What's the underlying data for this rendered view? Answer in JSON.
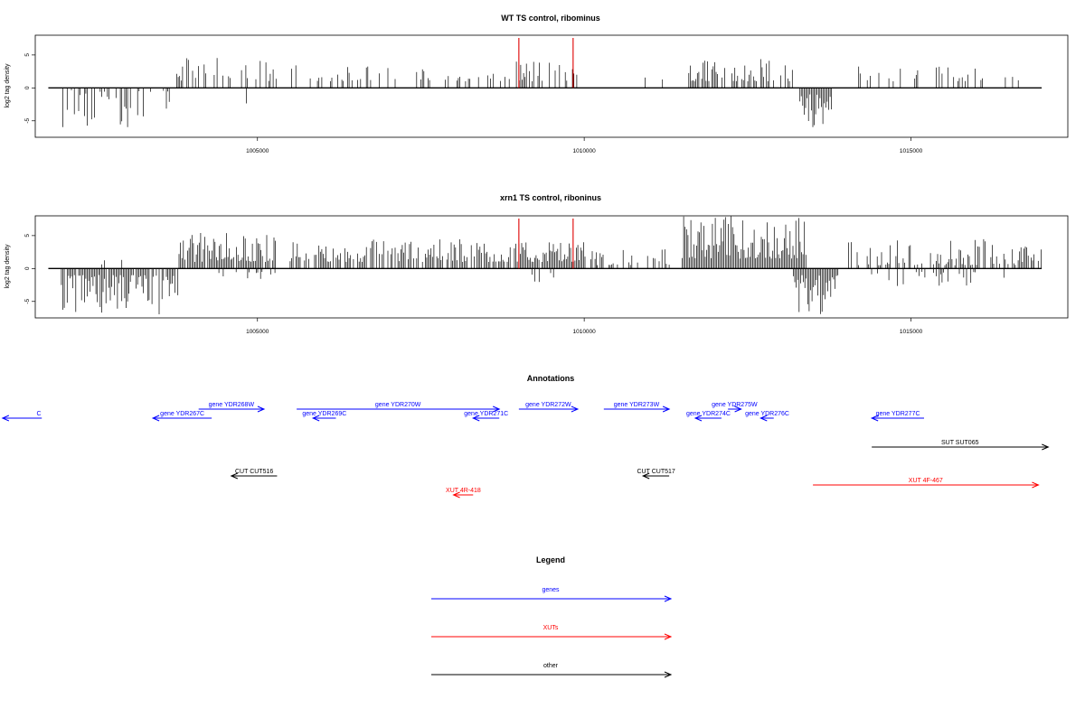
{
  "chart_data": [
    {
      "type": "bar",
      "title": "WT TS control, ribominus",
      "ylabel": "log2 tag density",
      "xlabel": "",
      "xlim": [
        1001600,
        1017400
      ],
      "ylim": [
        -7.5,
        8
      ],
      "yticks": [
        -5,
        0,
        5
      ],
      "xticks": [
        1005000,
        1010000,
        1015000
      ],
      "xtick_labels": [
        "1005000",
        "1010000",
        "1015000"
      ],
      "grid": false,
      "marker_positions": [
        1009000,
        1009830
      ],
      "marker_color": "#dd0000",
      "profile": [
        {
          "from": 1002000,
          "to": 1003700,
          "min": -6,
          "max": 0,
          "sign": -1,
          "density": 0.45
        },
        {
          "from": 1003700,
          "to": 1005300,
          "min": 1,
          "max": 5,
          "sign": 1,
          "density": 0.35
        },
        {
          "from": 1004500,
          "to": 1005200,
          "min": -3,
          "max": -1,
          "sign": -1,
          "density": 0.1
        },
        {
          "from": 1005500,
          "to": 1008500,
          "min": 1,
          "max": 3.5,
          "sign": 1,
          "density": 0.25
        },
        {
          "from": 1008500,
          "to": 1009900,
          "min": 1,
          "max": 4,
          "sign": 1,
          "density": 0.5
        },
        {
          "from": 1009900,
          "to": 1011200,
          "min": 1,
          "max": 2,
          "sign": 1,
          "density": 0.05
        },
        {
          "from": 1011600,
          "to": 1013200,
          "min": 1,
          "max": 4.5,
          "sign": 1,
          "density": 0.55
        },
        {
          "from": 1013300,
          "to": 1013800,
          "min": -6,
          "max": -1,
          "sign": -1,
          "density": 1
        },
        {
          "from": 1014200,
          "to": 1016900,
          "min": 1,
          "max": 3.5,
          "sign": 1,
          "density": 0.25
        }
      ]
    },
    {
      "type": "bar",
      "title": "xrn1 TS control, riboninus",
      "ylabel": "log2 tag density",
      "xlabel": "",
      "xlim": [
        1001600,
        1017400
      ],
      "ylim": [
        -7.5,
        8
      ],
      "yticks": [
        -5,
        0,
        5
      ],
      "xticks": [
        1005000,
        1010000,
        1015000
      ],
      "xtick_labels": [
        "1005000",
        "1010000",
        "1015000"
      ],
      "grid": false,
      "marker_positions": [
        1009000,
        1009830
      ],
      "marker_color": "#dd0000",
      "profile": [
        {
          "from": 1002000,
          "to": 1003800,
          "min": -7,
          "max": -1,
          "sign": -1,
          "density": 0.9
        },
        {
          "from": 1002000,
          "to": 1003000,
          "min": 0.5,
          "max": 2,
          "sign": 1,
          "density": 0.05
        },
        {
          "from": 1003800,
          "to": 1005300,
          "min": 1,
          "max": 5.5,
          "sign": 1,
          "density": 0.9
        },
        {
          "from": 1004300,
          "to": 1005300,
          "min": -2,
          "max": -0.5,
          "sign": -1,
          "density": 0.2
        },
        {
          "from": 1005500,
          "to": 1009000,
          "min": 1,
          "max": 4.5,
          "sign": 1,
          "density": 0.7
        },
        {
          "from": 1009000,
          "to": 1010200,
          "min": 1,
          "max": 4,
          "sign": 1,
          "density": 0.9
        },
        {
          "from": 1009200,
          "to": 1009900,
          "min": -3,
          "max": -0.5,
          "sign": -1,
          "density": 0.2
        },
        {
          "from": 1010200,
          "to": 1011300,
          "min": 0.5,
          "max": 3,
          "sign": 1,
          "density": 0.4
        },
        {
          "from": 1011500,
          "to": 1013400,
          "min": 1.5,
          "max": 8,
          "sign": 1,
          "density": 1
        },
        {
          "from": 1013200,
          "to": 1013900,
          "min": -7,
          "max": -1,
          "sign": -1,
          "density": 1
        },
        {
          "from": 1014000,
          "to": 1017000,
          "min": 0.5,
          "max": 4.5,
          "sign": 1,
          "density": 0.6
        },
        {
          "from": 1014200,
          "to": 1016500,
          "min": -3,
          "max": -0.5,
          "sign": -1,
          "density": 0.2
        }
      ]
    }
  ],
  "annotations": {
    "title": "Annotations",
    "items": [
      {
        "label": "C",
        "start": 1001700,
        "end": 1001100,
        "row": 1,
        "color": "#0000ff"
      },
      {
        "label": "gene YDR267C",
        "start": 1004300,
        "end": 1003400,
        "row": 1,
        "color": "#0000ff"
      },
      {
        "label": "gene YDR268W",
        "start": 1004100,
        "end": 1005100,
        "row": 0,
        "color": "#0000ff"
      },
      {
        "label": "gene YDR269C",
        "start": 1006200,
        "end": 1005850,
        "row": 1,
        "color": "#0000ff"
      },
      {
        "label": "gene YDR270W",
        "start": 1005600,
        "end": 1008700,
        "row": 0,
        "color": "#0000ff"
      },
      {
        "label": "gene YDR271C",
        "start": 1008700,
        "end": 1008300,
        "row": 1,
        "color": "#0000ff"
      },
      {
        "label": "gene YDR272W",
        "start": 1009000,
        "end": 1009900,
        "row": 0,
        "color": "#0000ff"
      },
      {
        "label": "gene YDR273W",
        "start": 1010300,
        "end": 1011300,
        "row": 0,
        "color": "#0000ff"
      },
      {
        "label": "gene YDR274C",
        "start": 1012100,
        "end": 1011700,
        "row": 1,
        "color": "#0000ff"
      },
      {
        "label": "gene YDR275W",
        "start": 1012200,
        "end": 1012400,
        "row": 0,
        "color": "#0000ff"
      },
      {
        "label": "gene YDR276C",
        "start": 1012900,
        "end": 1012700,
        "row": 1,
        "color": "#0000ff"
      },
      {
        "label": "gene YDR277C",
        "start": 1015200,
        "end": 1014400,
        "row": 1,
        "color": "#0000ff"
      },
      {
        "label": "SUT SUT065",
        "start": 1014400,
        "end": 1017100,
        "row": 2,
        "color": "#000000"
      },
      {
        "label": "CUT CUT516",
        "start": 1005300,
        "end": 1004600,
        "row": 3,
        "color": "#000000"
      },
      {
        "label": "CUT CUT517",
        "start": 1011300,
        "end": 1010900,
        "row": 3,
        "color": "#000000"
      },
      {
        "label": "XUT 4F-467",
        "start": 1013500,
        "end": 1016950,
        "row": 3.5,
        "color": "#ff0000"
      },
      {
        "label": "XUT 4R-418",
        "start": 1008300,
        "end": 1008000,
        "row": 4,
        "color": "#ff0000"
      }
    ]
  },
  "legend": {
    "title": "Legend",
    "items": [
      {
        "label": "genes",
        "color": "#0000ff"
      },
      {
        "label": "XUTs",
        "color": "#ff0000"
      },
      {
        "label": "other",
        "color": "#000000"
      }
    ]
  }
}
